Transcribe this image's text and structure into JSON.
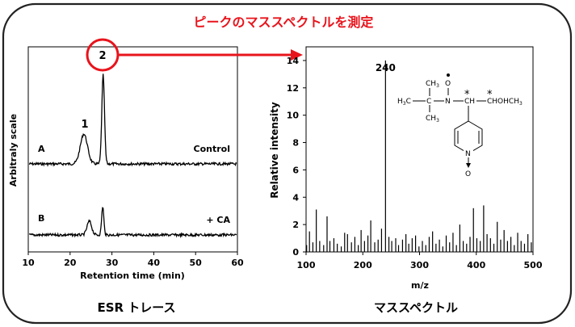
{
  "header": {
    "title": "ピークのマススペクトルを測定"
  },
  "captions": {
    "left": "ESR トレース",
    "right": "マススペクトル"
  },
  "colors": {
    "accent": "#e8141c",
    "frame": "#222222",
    "ink": "#000000"
  },
  "chart_data": [
    {
      "type": "line",
      "name": "esr-trace",
      "xlabel": "Retention time (min)",
      "ylabel": "Arbitraly scale",
      "xlim": [
        10,
        60
      ],
      "xticks": [
        10,
        20,
        30,
        40,
        50,
        60
      ],
      "grid": false,
      "peak_labels": [
        {
          "label": "1",
          "x": 23.3
        },
        {
          "label": "2",
          "x": 27.8
        }
      ],
      "series": [
        {
          "label": "A",
          "condition": "Control",
          "baseline": 0,
          "peaks": [
            {
              "x": 23.3,
              "height": 37,
              "width": 0.85
            },
            {
              "x": 27.9,
              "height": 110,
              "width": 0.32
            }
          ]
        },
        {
          "label": "B",
          "condition": "+ CA",
          "baseline": 0,
          "peaks": [
            {
              "x": 24.6,
              "height": 17,
              "width": 0.55
            },
            {
              "x": 27.8,
              "height": 35,
              "width": 0.26
            }
          ]
        }
      ]
    },
    {
      "type": "bar",
      "name": "mass-spectrum",
      "xlabel": "m/z",
      "ylabel": "Relative intensity",
      "xlim": [
        100,
        500
      ],
      "ylim": [
        0,
        15
      ],
      "xticks": [
        100,
        200,
        300,
        400,
        500
      ],
      "yticks": [
        0,
        2,
        4,
        6,
        8,
        10,
        12,
        14
      ],
      "grid": false,
      "annotations": [
        {
          "text": "240",
          "x": 240
        }
      ],
      "x": [
        101,
        106,
        112,
        118,
        124,
        131,
        137,
        142,
        149,
        155,
        162,
        168,
        173,
        180,
        186,
        192,
        197,
        203,
        209,
        214,
        221,
        227,
        233,
        240,
        246,
        251,
        258,
        263,
        270,
        276,
        281,
        287,
        293,
        299,
        305,
        311,
        317,
        323,
        329,
        335,
        341,
        347,
        353,
        359,
        365,
        371,
        377,
        383,
        389,
        395,
        401,
        407,
        413,
        419,
        425,
        431,
        437,
        443,
        449,
        455,
        461,
        467,
        473,
        479,
        485,
        491,
        497
      ],
      "values": [
        0.5,
        1.5,
        0.7,
        3.1,
        0.8,
        0.5,
        2.6,
        0.8,
        1.0,
        0.6,
        0.4,
        1.4,
        1.3,
        0.7,
        1.1,
        0.5,
        1.6,
        0.8,
        1.2,
        2.3,
        0.7,
        0.9,
        1.7,
        14.0,
        1.1,
        0.8,
        1.0,
        0.5,
        0.9,
        1.3,
        0.6,
        1.0,
        1.2,
        0.4,
        0.8,
        0.5,
        1.1,
        1.5,
        0.6,
        0.9,
        0.4,
        1.2,
        0.7,
        1.4,
        0.5,
        2.0,
        0.8,
        0.6,
        1.1,
        3.2,
        1.0,
        0.8,
        3.4,
        1.3,
        1.0,
        0.6,
        2.2,
        0.9,
        1.6,
        0.8,
        1.1,
        0.5,
        1.4,
        0.8,
        0.6,
        1.3,
        0.7
      ]
    }
  ],
  "structure": {
    "name": "nitroxide-spin-adduct-structure",
    "labels": {
      "ch3_top": "CH",
      "ch3_top_sub": "3",
      "h3c": "H",
      "h3c_sub": "3",
      "h3c_c": "C",
      "c_center": "C",
      "ch3_bottom": "CH",
      "ch3_bottom_sub": "3",
      "n": "N",
      "o_top": "O",
      "ch": "CH",
      "ch_o": "CHOHCH",
      "ch_o_sub": "3",
      "star1": "*",
      "star2": "*",
      "ring_n": "N",
      "o_bottom": "O"
    }
  }
}
